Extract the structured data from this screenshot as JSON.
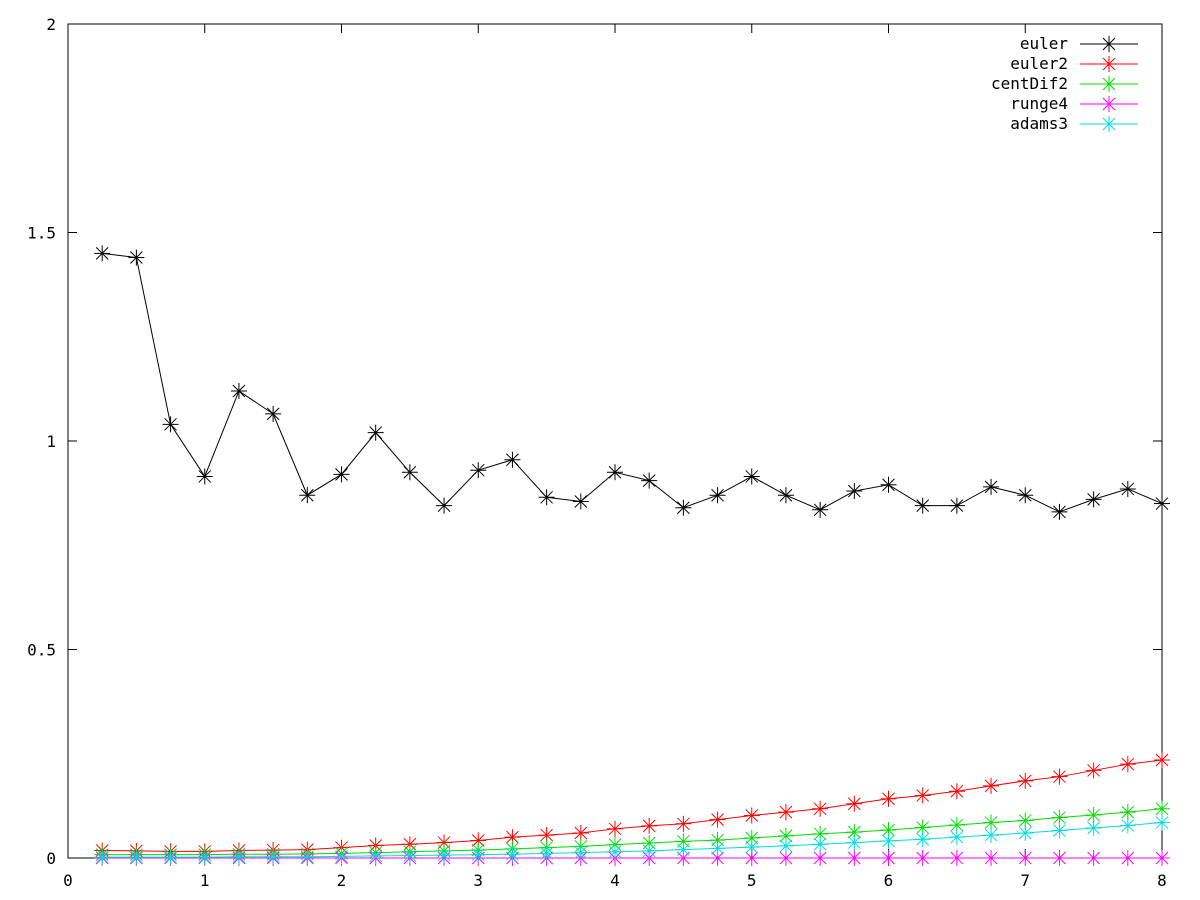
{
  "chart_data": {
    "type": "line",
    "title": "",
    "xlabel": "",
    "ylabel": "",
    "xlim": [
      0,
      8
    ],
    "ylim": [
      0,
      2
    ],
    "xticks": [
      "0",
      "1",
      "2",
      "3",
      "4",
      "5",
      "6",
      "7",
      "8"
    ],
    "yticks": [
      "0",
      "0.5",
      "1",
      "1.5",
      "2"
    ],
    "xtick_values": [
      0,
      1,
      2,
      3,
      4,
      5,
      6,
      7,
      8
    ],
    "ytick_values": [
      0,
      0.5,
      1,
      1.5,
      2
    ],
    "grid": false,
    "legend_position": "top-right",
    "marker": "asterisk",
    "x": [
      0.25,
      0.5,
      0.75,
      1.0,
      1.25,
      1.5,
      1.75,
      2.0,
      2.25,
      2.5,
      2.75,
      3.0,
      3.25,
      3.5,
      3.75,
      4.0,
      4.25,
      4.5,
      4.75,
      5.0,
      5.25,
      5.5,
      5.75,
      6.0,
      6.25,
      6.5,
      6.75,
      7.0,
      7.25,
      7.5,
      7.75,
      8.0
    ],
    "series": [
      {
        "name": "euler",
        "color": "#000000",
        "values": [
          1.45,
          1.44,
          1.04,
          0.915,
          1.12,
          1.065,
          0.87,
          0.92,
          1.02,
          0.925,
          0.845,
          0.93,
          0.955,
          0.865,
          0.855,
          0.925,
          0.905,
          0.84,
          0.87,
          0.915,
          0.87,
          0.835,
          0.88,
          0.895,
          0.845,
          0.845,
          0.89,
          0.87,
          0.83,
          0.86,
          0.885,
          0.85
        ]
      },
      {
        "name": "euler2",
        "color": "#ff0000",
        "values": [
          0.018,
          0.017,
          0.016,
          0.016,
          0.018,
          0.019,
          0.02,
          0.025,
          0.03,
          0.033,
          0.037,
          0.042,
          0.05,
          0.055,
          0.06,
          0.07,
          0.077,
          0.082,
          0.092,
          0.102,
          0.11,
          0.118,
          0.13,
          0.142,
          0.15,
          0.16,
          0.173,
          0.185,
          0.195,
          0.21,
          0.225,
          0.235
        ]
      },
      {
        "name": "centDif2",
        "color": "#00dd00",
        "values": [
          0.008,
          0.008,
          0.008,
          0.008,
          0.009,
          0.009,
          0.01,
          0.011,
          0.013,
          0.015,
          0.017,
          0.019,
          0.022,
          0.025,
          0.028,
          0.032,
          0.036,
          0.04,
          0.043,
          0.048,
          0.053,
          0.058,
          0.062,
          0.067,
          0.073,
          0.079,
          0.085,
          0.09,
          0.097,
          0.103,
          0.11,
          0.118
        ]
      },
      {
        "name": "runge4",
        "color": "#ff00ff",
        "values": [
          0.0,
          0.0,
          0.0,
          0.0,
          0.0,
          0.0,
          0.0,
          0.0,
          0.0,
          0.0,
          0.0,
          0.0,
          0.0,
          0.0,
          0.0,
          0.0,
          0.0,
          0.0,
          0.0,
          0.0,
          0.0,
          0.0,
          0.0,
          0.0,
          0.0,
          0.0,
          0.0,
          0.0,
          0.0,
          0.0,
          0.0,
          0.0
        ]
      },
      {
        "name": "adams3",
        "color": "#00dddd",
        "values": [
          0.002,
          0.002,
          0.002,
          0.002,
          0.003,
          0.003,
          0.003,
          0.004,
          0.005,
          0.006,
          0.007,
          0.008,
          0.009,
          0.011,
          0.013,
          0.015,
          0.017,
          0.02,
          0.023,
          0.026,
          0.029,
          0.033,
          0.037,
          0.041,
          0.045,
          0.05,
          0.055,
          0.06,
          0.066,
          0.072,
          0.078,
          0.085
        ]
      }
    ]
  }
}
